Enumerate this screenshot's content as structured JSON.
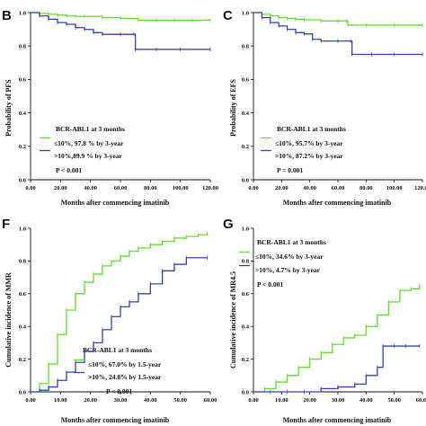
{
  "colors": {
    "low": "#66dd33",
    "high": "#3344aa",
    "axis": "#111111"
  },
  "chart_data": [
    {
      "panel": "B",
      "type": "line",
      "xlabel": "Months after commencing imatinib",
      "ylabel": "Probability of PFS",
      "xlim": [
        0,
        120
      ],
      "ylim": [
        0,
        1
      ],
      "xticks": [
        "0.00",
        "20.00",
        "40.00",
        "60.00",
        "80.00",
        "100.00",
        "120.00"
      ],
      "yticks": [
        "0.0",
        "0.2",
        "0.4",
        "0.6",
        "0.8",
        "1.0"
      ],
      "legend_title": "BCR-ABL1 at 3 months",
      "p_value": "P < 0.001",
      "series": [
        {
          "name": "≤10%, 97.8 % by 3-year",
          "color": "#66dd33",
          "x": [
            0,
            6,
            12,
            18,
            24,
            30,
            36,
            48,
            60,
            72,
            84,
            96,
            108,
            120
          ],
          "y": [
            1.0,
            0.995,
            0.99,
            0.985,
            0.98,
            0.978,
            0.978,
            0.97,
            0.965,
            0.955,
            0.955,
            0.955,
            0.955,
            0.955
          ]
        },
        {
          "name": ">10%,89.9 % by 3-year",
          "color": "#3344aa",
          "x": [
            0,
            6,
            12,
            18,
            24,
            30,
            36,
            42,
            48,
            60,
            69,
            70,
            84,
            100,
            120
          ],
          "y": [
            1.0,
            0.98,
            0.96,
            0.94,
            0.93,
            0.91,
            0.899,
            0.88,
            0.87,
            0.87,
            0.87,
            0.78,
            0.78,
            0.78,
            0.78
          ]
        }
      ]
    },
    {
      "panel": "C",
      "type": "line",
      "xlabel": "Months after commencing imatinib",
      "ylabel": "Probability of EFS",
      "xlim": [
        0,
        120
      ],
      "ylim": [
        0,
        1
      ],
      "xticks": [
        "0.00",
        "20.00",
        "40.00",
        "60.00",
        "80.00",
        "100.00",
        "120.00"
      ],
      "yticks": [
        "0.0",
        "0.2",
        "0.4",
        "0.6",
        "0.8",
        "1.0"
      ],
      "legend_title": "BCR-ABL1 at 3 months",
      "p_value": "P = 0.001",
      "series": [
        {
          "name": "≤10%, 95.7% by 3-year",
          "color": "#66dd33",
          "x": [
            0,
            6,
            12,
            18,
            24,
            30,
            36,
            48,
            60,
            66,
            67,
            80,
            100,
            120
          ],
          "y": [
            1.0,
            0.99,
            0.98,
            0.97,
            0.965,
            0.96,
            0.957,
            0.95,
            0.95,
            0.95,
            0.925,
            0.925,
            0.925,
            0.925
          ]
        },
        {
          "name": ">10%, 87.2% by 3-year",
          "color": "#3344aa",
          "x": [
            0,
            6,
            12,
            18,
            24,
            30,
            36,
            42,
            48,
            60,
            69,
            70,
            84,
            100,
            120
          ],
          "y": [
            1.0,
            0.97,
            0.94,
            0.92,
            0.9,
            0.88,
            0.872,
            0.84,
            0.83,
            0.83,
            0.83,
            0.75,
            0.75,
            0.75,
            0.75
          ]
        }
      ]
    },
    {
      "panel": "F",
      "type": "line",
      "xlabel": "Months after commencing imatinib",
      "ylabel": "Cumulative incidence of MMR",
      "xlim": [
        0,
        60
      ],
      "ylim": [
        0,
        1
      ],
      "xticks": [
        "0.00",
        "10.00",
        "20.00",
        "30.00",
        "40.00",
        "50.00",
        "60.00"
      ],
      "yticks": [
        "0.0",
        "0.2",
        "0.4",
        "0.6",
        "0.8",
        "1.0"
      ],
      "legend_title": "BCR-ABL1 at 3 months",
      "p_value": "P < 0.001",
      "series": [
        {
          "name": "≤10%, 67.0% by 1.5-year",
          "color": "#66dd33",
          "x": [
            0,
            3,
            6,
            9,
            12,
            15,
            18,
            21,
            24,
            27,
            30,
            33,
            36,
            40,
            44,
            48,
            52,
            56,
            59
          ],
          "y": [
            0.0,
            0.05,
            0.17,
            0.35,
            0.5,
            0.6,
            0.67,
            0.72,
            0.77,
            0.8,
            0.83,
            0.86,
            0.88,
            0.9,
            0.92,
            0.94,
            0.95,
            0.96,
            0.97
          ]
        },
        {
          "name": ">10%, 24.8% by 1.5-year",
          "color": "#3344aa",
          "x": [
            0,
            3,
            6,
            9,
            12,
            15,
            18,
            21,
            24,
            27,
            30,
            33,
            36,
            40,
            44,
            48,
            52,
            59
          ],
          "y": [
            0.0,
            0.01,
            0.03,
            0.07,
            0.12,
            0.18,
            0.248,
            0.3,
            0.38,
            0.46,
            0.52,
            0.55,
            0.6,
            0.66,
            0.74,
            0.78,
            0.82,
            0.82
          ]
        }
      ]
    },
    {
      "panel": "G",
      "type": "line",
      "xlabel": "Months after commencing imatinib",
      "ylabel": "Cumulative incidence of MR4.5",
      "xlim": [
        0,
        60
      ],
      "ylim": [
        0,
        1
      ],
      "xticks": [
        "0.00",
        "10.00",
        "20.00",
        "30.00",
        "40.00",
        "50.00",
        "60.00"
      ],
      "yticks": [
        "0.0",
        "0.2",
        "0.4",
        "0.6",
        "0.8",
        "1.0"
      ],
      "legend_title": "BCR-ABL1 at 3 months",
      "p_value": "P < 0.001",
      "series": [
        {
          "name": "≤10%, 34.6% by 3-year",
          "color": "#66dd33",
          "x": [
            0,
            4,
            8,
            12,
            16,
            20,
            24,
            28,
            32,
            36,
            40,
            44,
            48,
            52,
            56,
            59
          ],
          "y": [
            0.0,
            0.02,
            0.06,
            0.1,
            0.15,
            0.2,
            0.24,
            0.29,
            0.33,
            0.346,
            0.4,
            0.47,
            0.55,
            0.62,
            0.63,
            0.65
          ]
        },
        {
          "name": ">10%,  4.7% by 3-year",
          "color": "#3344aa",
          "x": [
            0,
            6,
            12,
            18,
            24,
            30,
            36,
            40,
            44,
            46,
            50,
            54,
            59
          ],
          "y": [
            0.0,
            0.0,
            0.0,
            0.0,
            0.02,
            0.03,
            0.047,
            0.1,
            0.15,
            0.28,
            0.28,
            0.28,
            0.28
          ]
        }
      ]
    }
  ]
}
